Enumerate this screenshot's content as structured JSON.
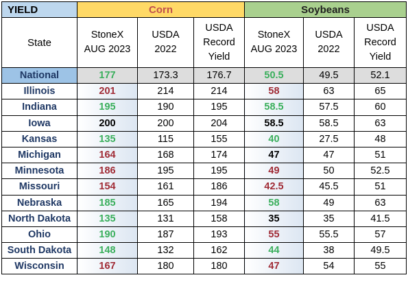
{
  "header": {
    "yield": "YIELD",
    "corn": "Corn",
    "soybeans": "Soybeans"
  },
  "columns": {
    "state": "State",
    "corn_stonex_1": "StoneX",
    "corn_stonex_2": "AUG 2023",
    "corn_usda_1": "USDA",
    "corn_usda_2": "2022",
    "corn_record_1": "USDA",
    "corn_record_2": "Record",
    "corn_record_3": "Yield",
    "soy_stonex_1": "StoneX",
    "soy_stonex_2": "AUG 2023",
    "soy_usda_1": "USDA",
    "soy_usda_2": "2022",
    "soy_record_1": "USDA",
    "soy_record_2": "Record",
    "soy_record_3": "Yield"
  },
  "colors": {
    "higher": "#3aaf5c",
    "lower": "#a02b35",
    "same": "#000000"
  },
  "rows": [
    {
      "state": "National",
      "corn_stonex": "177",
      "corn_tone": "green",
      "corn_usda": "173.3",
      "corn_record": "176.7",
      "soy_stonex": "50.5",
      "soy_tone": "green",
      "soy_usda": "49.5",
      "soy_record": "52.1"
    },
    {
      "state": "Illinois",
      "corn_stonex": "201",
      "corn_tone": "red",
      "corn_usda": "214",
      "corn_record": "214",
      "soy_stonex": "58",
      "soy_tone": "red",
      "soy_usda": "63",
      "soy_record": "65"
    },
    {
      "state": "Indiana",
      "corn_stonex": "195",
      "corn_tone": "green",
      "corn_usda": "190",
      "corn_record": "195",
      "soy_stonex": "58.5",
      "soy_tone": "green",
      "soy_usda": "57.5",
      "soy_record": "60"
    },
    {
      "state": "Iowa",
      "corn_stonex": "200",
      "corn_tone": "black",
      "corn_usda": "200",
      "corn_record": "204",
      "soy_stonex": "58.5",
      "soy_tone": "black",
      "soy_usda": "58.5",
      "soy_record": "63"
    },
    {
      "state": "Kansas",
      "corn_stonex": "135",
      "corn_tone": "green",
      "corn_usda": "115",
      "corn_record": "155",
      "soy_stonex": "40",
      "soy_tone": "green",
      "soy_usda": "27.5",
      "soy_record": "48"
    },
    {
      "state": "Michigan",
      "corn_stonex": "164",
      "corn_tone": "red",
      "corn_usda": "168",
      "corn_record": "174",
      "soy_stonex": "47",
      "soy_tone": "black",
      "soy_usda": "47",
      "soy_record": "51"
    },
    {
      "state": "Minnesota",
      "corn_stonex": "186",
      "corn_tone": "red",
      "corn_usda": "195",
      "corn_record": "195",
      "soy_stonex": "49",
      "soy_tone": "red",
      "soy_usda": "50",
      "soy_record": "52.5"
    },
    {
      "state": "Missouri",
      "corn_stonex": "154",
      "corn_tone": "red",
      "corn_usda": "161",
      "corn_record": "186",
      "soy_stonex": "42.5",
      "soy_tone": "red",
      "soy_usda": "45.5",
      "soy_record": "51"
    },
    {
      "state": "Nebraska",
      "corn_stonex": "185",
      "corn_tone": "green",
      "corn_usda": "165",
      "corn_record": "194",
      "soy_stonex": "58",
      "soy_tone": "green",
      "soy_usda": "49",
      "soy_record": "63"
    },
    {
      "state": "North Dakota",
      "corn_stonex": "135",
      "corn_tone": "green",
      "corn_usda": "131",
      "corn_record": "158",
      "soy_stonex": "35",
      "soy_tone": "black",
      "soy_usda": "35",
      "soy_record": "41.5"
    },
    {
      "state": "Ohio",
      "corn_stonex": "190",
      "corn_tone": "green",
      "corn_usda": "187",
      "corn_record": "193",
      "soy_stonex": "55",
      "soy_tone": "red",
      "soy_usda": "55.5",
      "soy_record": "57"
    },
    {
      "state": "South Dakota",
      "corn_stonex": "148",
      "corn_tone": "green",
      "corn_usda": "132",
      "corn_record": "162",
      "soy_stonex": "44",
      "soy_tone": "green",
      "soy_usda": "38",
      "soy_record": "49.5"
    },
    {
      "state": "Wisconsin",
      "corn_stonex": "167",
      "corn_tone": "red",
      "corn_usda": "180",
      "corn_record": "180",
      "soy_stonex": "47",
      "soy_tone": "red",
      "soy_usda": "54",
      "soy_record": "55"
    }
  ]
}
